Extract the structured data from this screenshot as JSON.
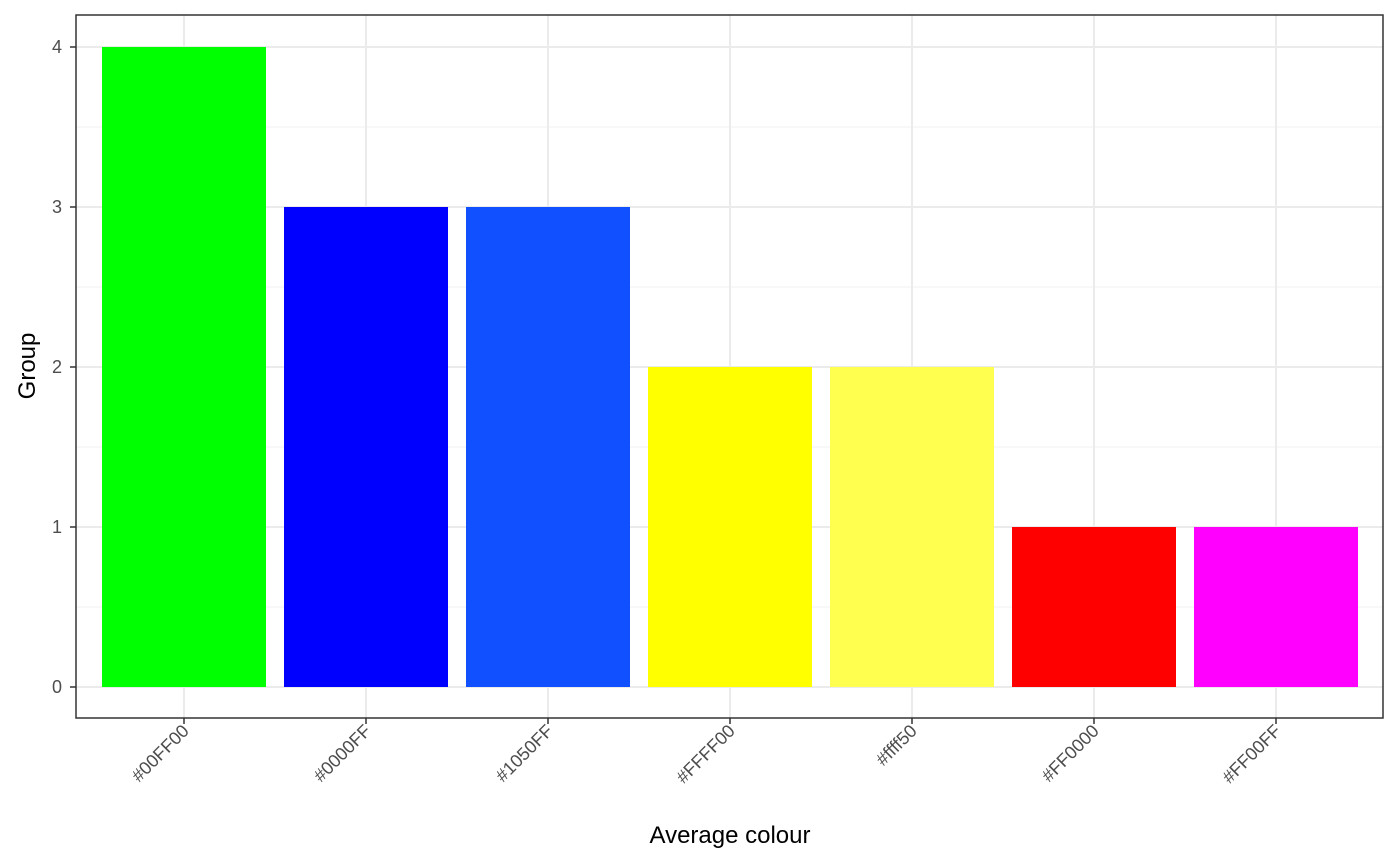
{
  "chart_data": {
    "type": "bar",
    "xlabel": "Average colour",
    "ylabel": "Group",
    "categories": [
      "#00FF00",
      "#0000FF",
      "#1050FF",
      "#FFFF00",
      "#ffff50",
      "#FF0000",
      "#FF00FF"
    ],
    "values": [
      4,
      3,
      3,
      2,
      2,
      1,
      1
    ],
    "colors": [
      "#00ff00",
      "#0000ff",
      "#1050ff",
      "#ffff00",
      "#ffff50",
      "#ff0000",
      "#ff00ff"
    ],
    "y_ticks": [
      "0",
      "1",
      "2",
      "3",
      "4"
    ],
    "ylim": [
      0,
      4
    ],
    "grid": true,
    "legend": "none"
  }
}
